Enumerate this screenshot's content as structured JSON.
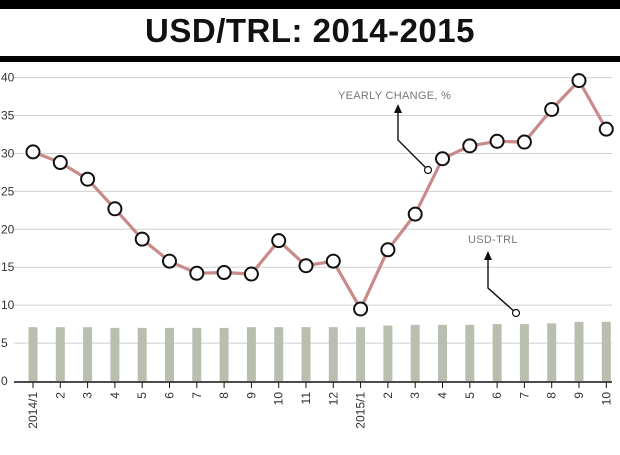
{
  "title": "USD/TRL: 2014-2015",
  "chart_data": {
    "type": "line",
    "title": "USD/TRL: 2014-2015",
    "categories": [
      "2014/1",
      "2",
      "3",
      "4",
      "5",
      "6",
      "7",
      "8",
      "9",
      "10",
      "11",
      "12",
      "2015/1",
      "2",
      "3",
      "4",
      "5",
      "6",
      "7",
      "8",
      "9",
      "10"
    ],
    "highlight_categories": [
      "2014/1",
      "2015/1"
    ],
    "y_ticks": [
      0,
      5,
      10,
      15,
      20,
      25,
      30,
      35,
      40
    ],
    "ylim": [
      0,
      41
    ],
    "grid": true,
    "series": [
      {
        "name": "YEARLY CHANGE, %",
        "type": "line",
        "color": "#c98a8a",
        "values": [
          30.2,
          28.8,
          26.6,
          22.7,
          18.7,
          15.8,
          14.2,
          14.3,
          14.1,
          18.5,
          15.2,
          15.8,
          9.5,
          17.3,
          22.0,
          29.3,
          31.0,
          31.6,
          31.5,
          35.8,
          39.6,
          33.2
        ]
      },
      {
        "name": "USD-TRL",
        "type": "bar",
        "color": "#b8bfae",
        "values": [
          7.1,
          7.1,
          7.1,
          7.0,
          7.0,
          7.0,
          7.0,
          7.0,
          7.1,
          7.1,
          7.1,
          7.1,
          7.1,
          7.3,
          7.4,
          7.4,
          7.4,
          7.5,
          7.5,
          7.6,
          7.8,
          7.8
        ]
      }
    ]
  },
  "annotations": {
    "yearly_change": "YEARLY CHANGE, %",
    "usd_trl": "USD-TRL"
  },
  "colors": {
    "line": "#c98a8a",
    "bar": "#b8bfae",
    "grid": "#cfcfcf",
    "highlight_tick": "#c4162a"
  }
}
